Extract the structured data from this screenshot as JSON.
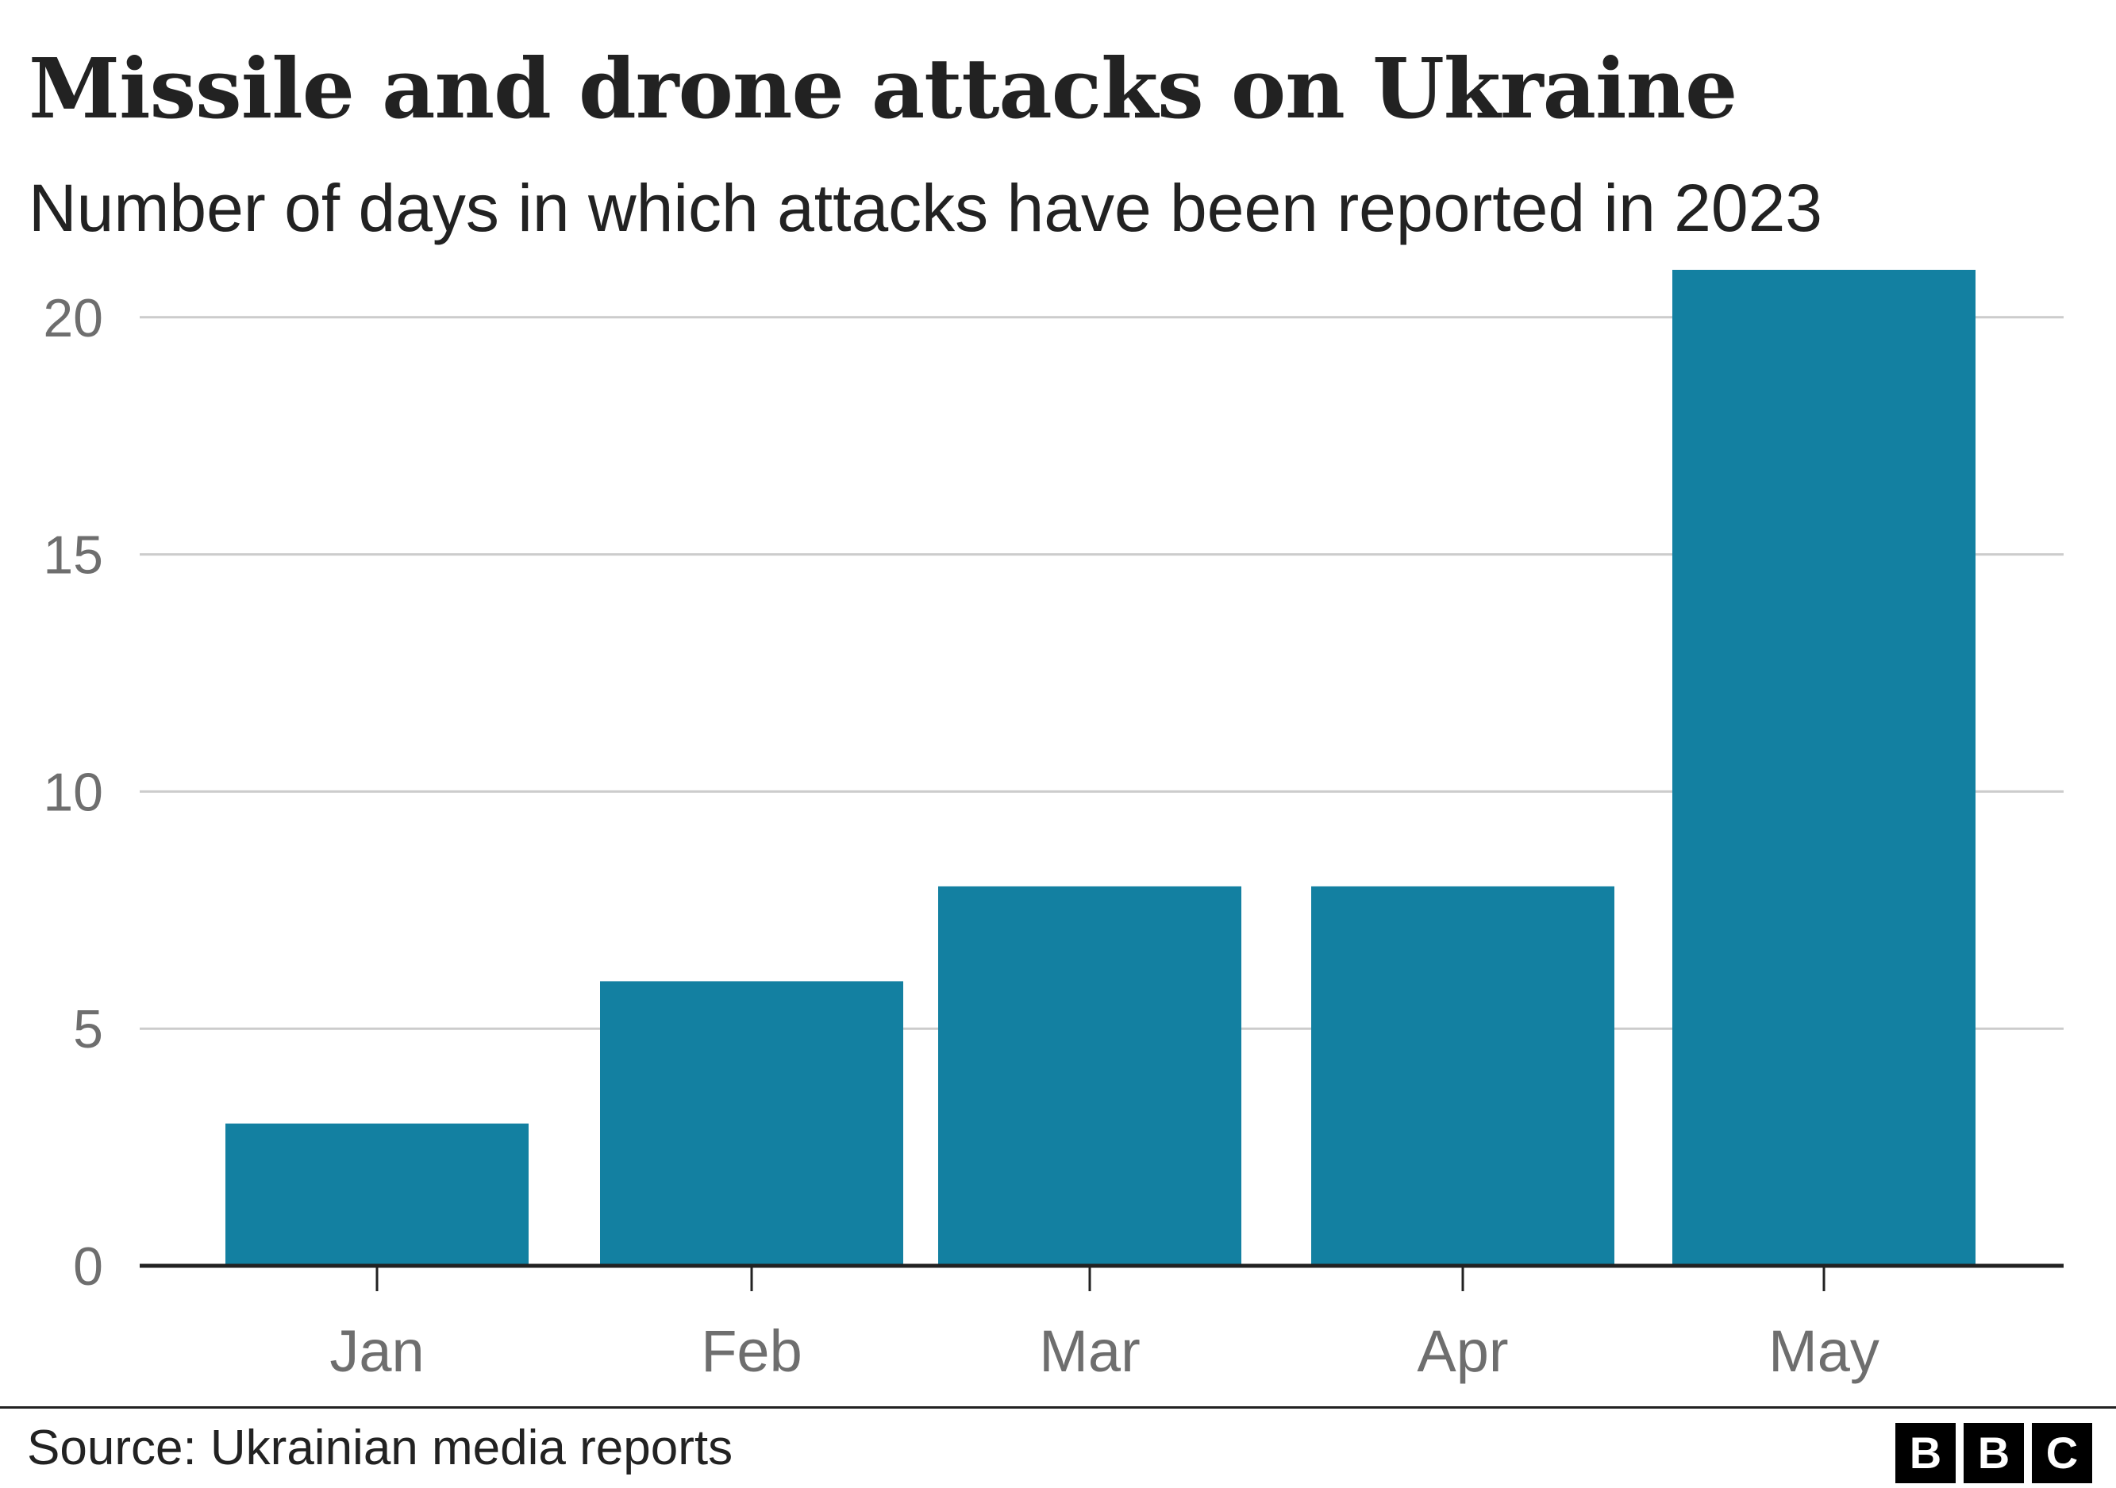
{
  "title": "Missile and drone attacks on Ukraine",
  "subtitle": "Number of days in which attacks have been reported in 2023",
  "source": "Source: Ukrainian media reports",
  "logo": [
    "B",
    "B",
    "C"
  ],
  "colors": {
    "bar": "#1380A1",
    "grid": "#CCCCCC",
    "axis": "#222222",
    "tick_label": "#6E6E6E",
    "text": "#222222"
  },
  "chart_data": {
    "type": "bar",
    "title": "Missile and drone attacks on Ukraine",
    "subtitle": "Number of days in which attacks have been reported in 2023",
    "xlabel": "",
    "ylabel": "",
    "categories": [
      "Jan",
      "Feb",
      "Mar",
      "Apr",
      "May"
    ],
    "values": [
      3,
      6,
      8,
      8,
      21
    ],
    "ylim": [
      0,
      21
    ],
    "yticks": [
      0,
      5,
      10,
      15,
      20
    ],
    "grid": true,
    "legend": "none"
  }
}
